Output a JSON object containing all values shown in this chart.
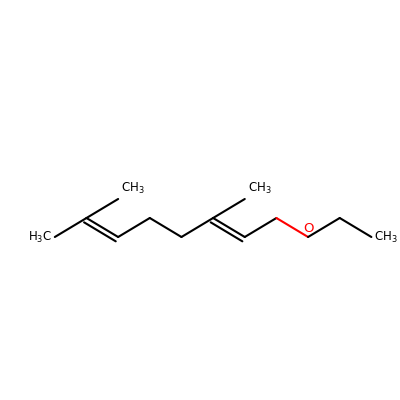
{
  "background_color": "#ffffff",
  "bond_color": "#000000",
  "oxygen_color": "#ff0000",
  "line_width": 1.5,
  "font_size": 8.5,
  "figsize": [
    4.0,
    4.0
  ],
  "dpi": 100,
  "xlim": [
    0,
    400
  ],
  "ylim": [
    0,
    400
  ],
  "structure_y_center": 230,
  "bl": 38,
  "ang_deg": 30
}
